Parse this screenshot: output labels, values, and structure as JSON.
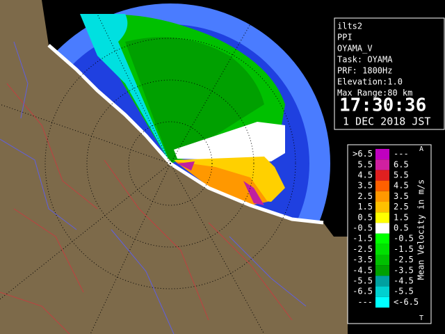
{
  "info": {
    "lines": [
      "ilts2",
      "PPI",
      "OYAMA_V",
      "Task: OYAMA",
      "PRF: 1800Hz",
      "Elevation:1.0",
      "Max Range:80 km"
    ],
    "time": "17:30:36",
    "date": "1 DEC 2018 JST"
  },
  "legend": {
    "title": "Mean Velocity in m/s",
    "top_mark": "A",
    "bottom_mark": "T",
    "rows": [
      {
        "low": ">6.5",
        "high": "---",
        "color": "#c000c0"
      },
      {
        "low": "5.5",
        "high": "6.5",
        "color": "#d020a0"
      },
      {
        "low": "4.5",
        "high": "5.5",
        "color": "#e02020"
      },
      {
        "low": "3.5",
        "high": "4.5",
        "color": "#ff6000"
      },
      {
        "low": "2.5",
        "high": "3.5",
        "color": "#ff9800"
      },
      {
        "low": "1.5",
        "high": "2.5",
        "color": "#ffc000"
      },
      {
        "low": "0.5",
        "high": "1.5",
        "color": "#ffff00"
      },
      {
        "low": "-0.5",
        "high": "0.5",
        "color": "#ffffff"
      },
      {
        "low": "-1.5",
        "high": "-0.5",
        "color": "#00ff00"
      },
      {
        "low": "-2.5",
        "high": "-1.5",
        "color": "#00e000"
      },
      {
        "low": "-3.5",
        "high": "-2.5",
        "color": "#00c000"
      },
      {
        "low": "-4.5",
        "high": "-3.5",
        "color": "#00a000"
      },
      {
        "low": "-5.5",
        "high": "-4.5",
        "color": "#00a0a0"
      },
      {
        "low": "-6.5",
        "high": "-5.5",
        "color": "#00d0d0"
      },
      {
        "low": "---",
        "high": "<-6.5",
        "color": "#00ffff"
      }
    ]
  }
}
